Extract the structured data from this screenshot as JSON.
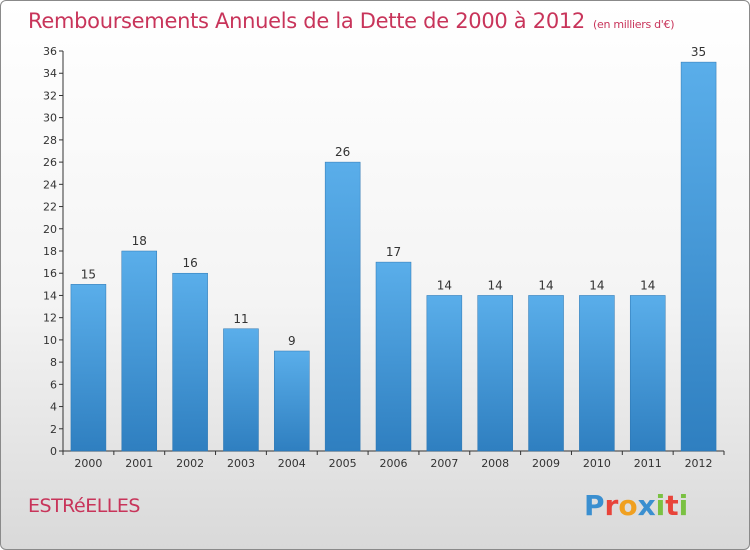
{
  "title": "Remboursements Annuels de la Dette de 2000 à 2012",
  "unit_note": "(en milliers d'€)",
  "town": "ESTRéELLES",
  "logo": {
    "text": "Proxiti",
    "letter_colors": [
      "#3a8fd0",
      "#e8443a",
      "#f0a020",
      "#3a8fd0",
      "#7ac142",
      "#e8443a",
      "#7ac142"
    ]
  },
  "colors": {
    "bar": "#3d96d8",
    "title": "#c8345a",
    "axis": "#333333"
  },
  "chart_data": {
    "type": "bar",
    "categories": [
      "2000",
      "2001",
      "2002",
      "2003",
      "2004",
      "2005",
      "2006",
      "2007",
      "2008",
      "2009",
      "2010",
      "2011",
      "2012"
    ],
    "values": [
      15,
      18,
      16,
      11,
      9,
      26,
      17,
      14,
      14,
      14,
      14,
      14,
      35
    ],
    "ylim": [
      0,
      36
    ],
    "yticks": [
      0,
      2,
      4,
      6,
      8,
      10,
      12,
      14,
      16,
      18,
      20,
      22,
      24,
      26,
      28,
      30,
      32,
      34,
      36
    ],
    "grid": false,
    "data_labels": true
  }
}
